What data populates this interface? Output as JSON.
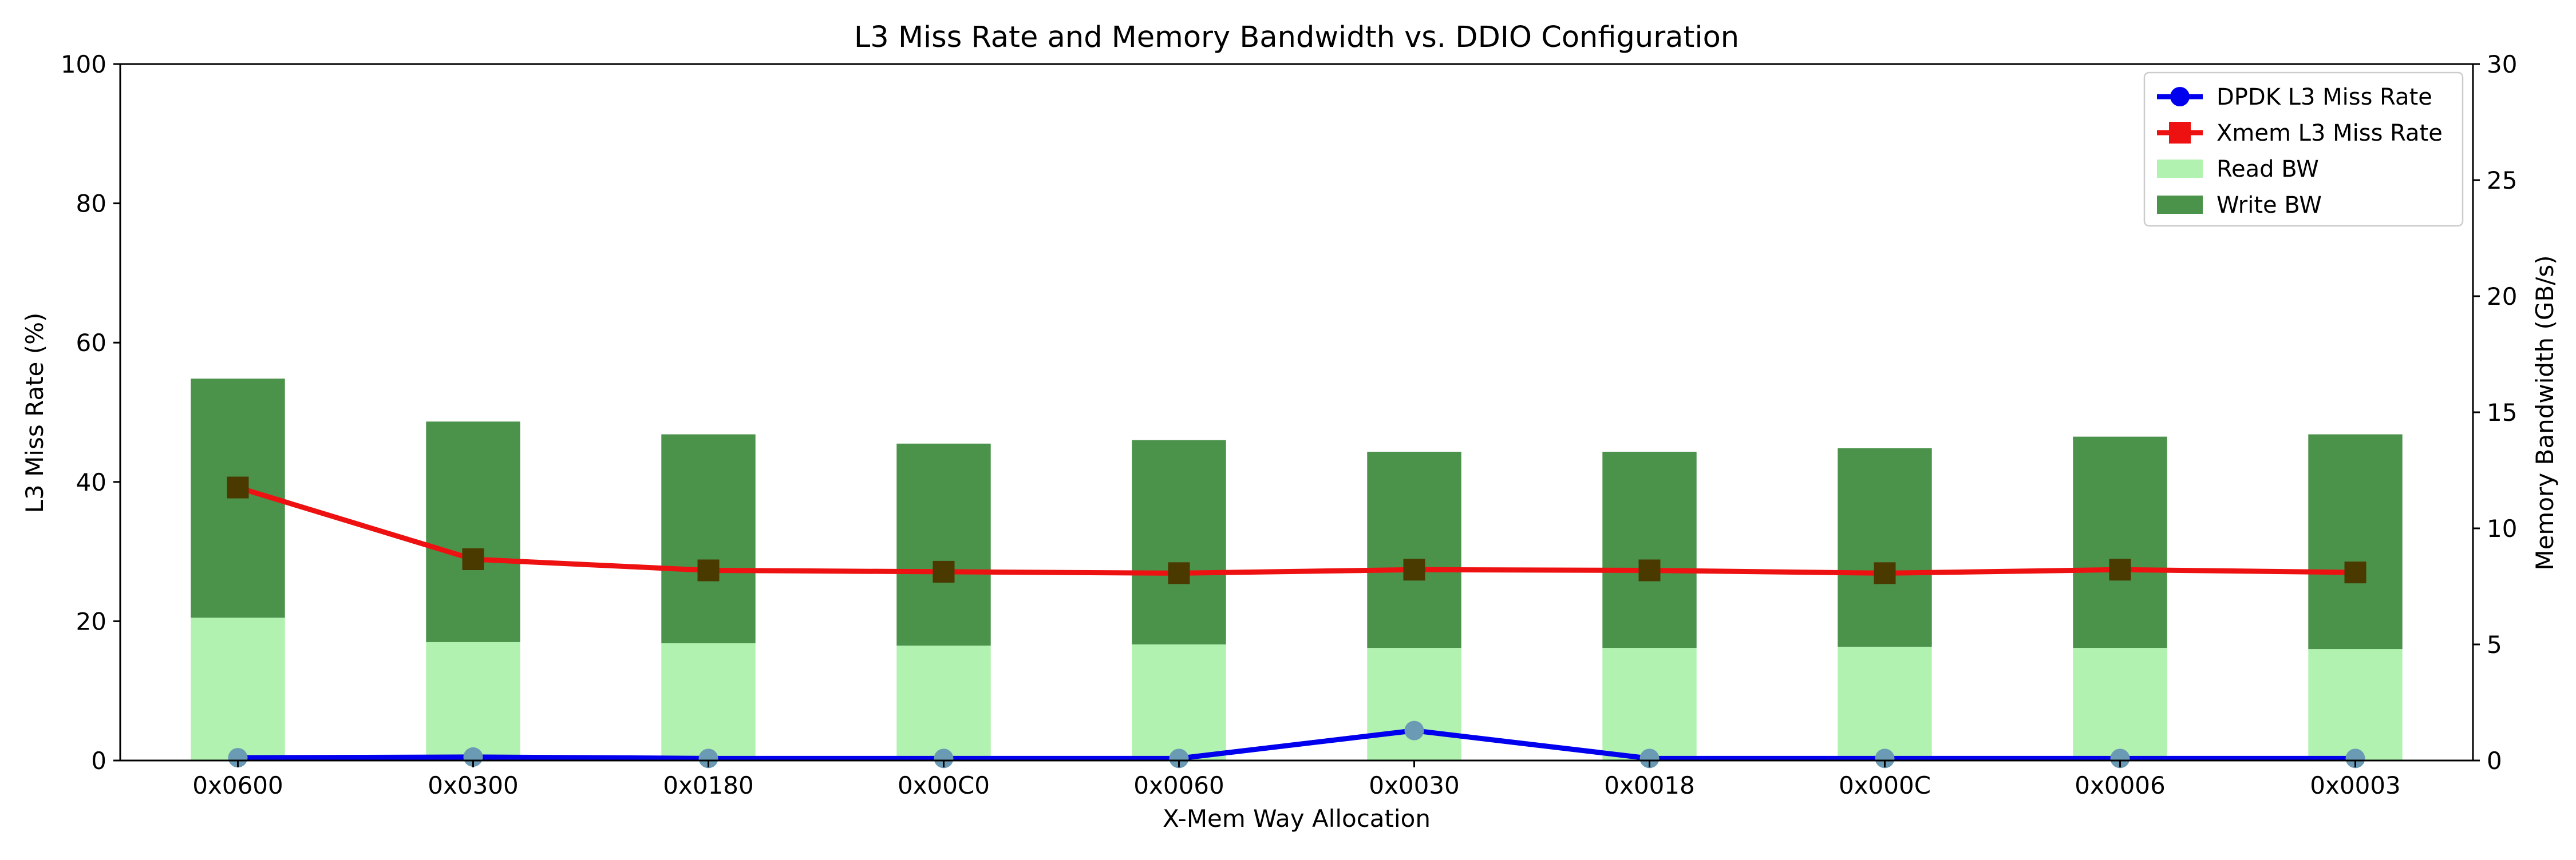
{
  "chart_data": {
    "type": "bar",
    "title": "L3 Miss Rate and Memory Bandwidth vs. DDIO Configuration",
    "xlabel": "X-Mem Way Allocation",
    "ylabel": "L3 Miss Rate (%)",
    "y2label": "Memory Bandwidth (GB/s)",
    "categories": [
      "0x0600",
      "0x0300",
      "0x0180",
      "0x00C0",
      "0x0060",
      "0x0030",
      "0x0018",
      "0x000C",
      "0x0006",
      "0x0003"
    ],
    "ylim": [
      0,
      100
    ],
    "y2lim": [
      0,
      30
    ],
    "yticks": [
      0,
      20,
      40,
      60,
      80,
      100
    ],
    "y2ticks": [
      0,
      5,
      10,
      15,
      20,
      25,
      30
    ],
    "grid": false,
    "legend_position": "top-right",
    "bars": {
      "stacked": true,
      "axis": "right",
      "series": [
        {
          "name": "Read BW",
          "color": "#b2f2b0",
          "values": [
            6.15,
            5.1,
            5.05,
            4.95,
            5.0,
            4.85,
            4.85,
            4.9,
            4.85,
            4.8
          ]
        },
        {
          "name": "Write BW",
          "color": "#4b924b",
          "values": [
            10.3,
            9.5,
            9.0,
            8.7,
            8.8,
            8.45,
            8.45,
            8.55,
            9.1,
            9.25
          ]
        }
      ]
    },
    "lines": [
      {
        "name": "DPDK L3 Miss Rate",
        "color": "#0000ee",
        "marker": "circle",
        "marker_color": "#6a9ab4",
        "axis": "left",
        "values": [
          0.4,
          0.5,
          0.3,
          0.3,
          0.3,
          4.3,
          0.3,
          0.3,
          0.3,
          0.3
        ]
      },
      {
        "name": "Xmem L3 Miss Rate",
        "color": "#ee1111",
        "marker": "square",
        "marker_color": "#4a3a00",
        "axis": "left",
        "values": [
          39.2,
          28.9,
          27.3,
          27.1,
          26.9,
          27.4,
          27.3,
          26.9,
          27.4,
          27.0
        ]
      }
    ],
    "legend": [
      {
        "label": "DPDK L3 Miss Rate",
        "kind": "line-circle",
        "color": "#0000ee"
      },
      {
        "label": "Xmem L3 Miss Rate",
        "kind": "line-square",
        "color": "#ee1111"
      },
      {
        "label": "Read BW",
        "kind": "patch",
        "color": "#b2f2b0"
      },
      {
        "label": "Write BW",
        "kind": "patch",
        "color": "#4b924b"
      }
    ]
  }
}
